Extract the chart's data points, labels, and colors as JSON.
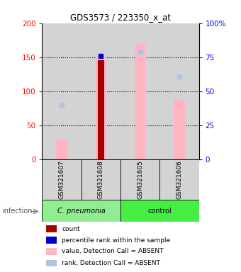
{
  "title": "GDS3573 / 223350_x_at",
  "samples": [
    "GSM321607",
    "GSM321608",
    "GSM321605",
    "GSM321606"
  ],
  "group_pneumonia_label": "C. pneumonia",
  "group_control_label": "control",
  "group_pneumonia_color": "#90EE90",
  "group_control_color": "#44EE44",
  "bar_bg_color": "#D3D3D3",
  "ylim_left": [
    0,
    200
  ],
  "ylim_right": [
    0,
    100
  ],
  "yticks_left": [
    0,
    50,
    100,
    150,
    200
  ],
  "yticks_right": [
    0,
    25,
    50,
    75,
    100
  ],
  "yticklabels_left": [
    "0",
    "50",
    "100",
    "150",
    "200"
  ],
  "yticklabels_right": [
    "0",
    "25",
    "50",
    "75",
    "100%"
  ],
  "count_values": [
    null,
    145,
    null,
    null
  ],
  "count_color": "#AA0000",
  "percentile_values": [
    null,
    76,
    null,
    null
  ],
  "percentile_color": "#0000CC",
  "value_absent_values": [
    30,
    150,
    170,
    88
  ],
  "value_absent_color": "#FFB6C1",
  "rank_absent_values": [
    40,
    null,
    79,
    61
  ],
  "rank_absent_color": "#B0C4DE",
  "infection_label": "infection",
  "x_positions": [
    1,
    2,
    3,
    4
  ],
  "legend_items": [
    {
      "label": "count",
      "color": "#AA0000"
    },
    {
      "label": "percentile rank within the sample",
      "color": "#0000CC"
    },
    {
      "label": "value, Detection Call = ABSENT",
      "color": "#FFB6C1"
    },
    {
      "label": "rank, Detection Call = ABSENT",
      "color": "#B0C4DE"
    }
  ]
}
